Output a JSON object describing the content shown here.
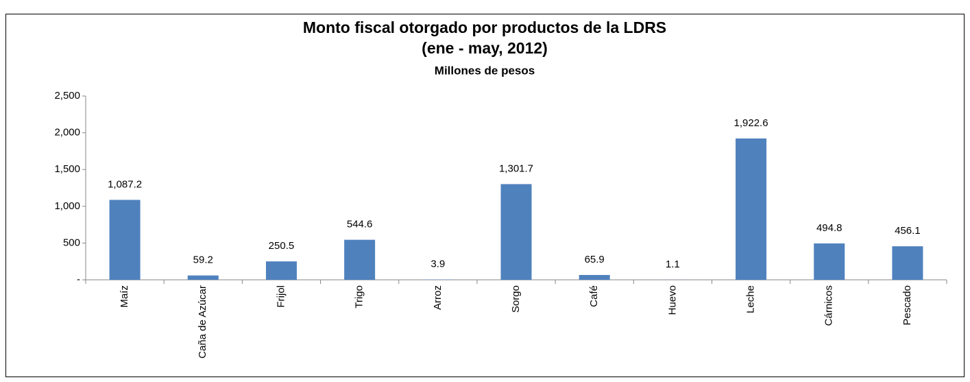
{
  "chart_data": {
    "type": "bar",
    "title": "Monto fiscal otorgado por productos de la LDRS",
    "subtitle": "(ene - may, 2012)",
    "y_axis_label": "Millones de pesos",
    "categories": [
      "Maíz",
      "Caña de Azúcar",
      "Frijol",
      "Trigo",
      "Arroz",
      "Sorgo",
      "Café",
      "Huevo",
      "Leche",
      "Cárnicos",
      "Pescado"
    ],
    "values": [
      1087.2,
      59.2,
      250.5,
      544.6,
      3.9,
      1301.7,
      65.9,
      1.1,
      1922.6,
      494.8,
      456.1
    ],
    "value_labels": [
      "1,087.2",
      "59.2",
      "250.5",
      "544.6",
      "3.9",
      "1,301.7",
      "65.9",
      "1.1",
      "1,922.6",
      "494.8",
      "456.1"
    ],
    "color": "#4f81bd",
    "ylim": [
      0,
      2500
    ],
    "yticks": [
      {
        "value": 0,
        "label": "-"
      },
      500,
      {
        "value": 1000,
        "label": "1,000"
      },
      {
        "value": 1500,
        "label": "1,500"
      },
      {
        "value": 2000,
        "label": "2,000"
      },
      {
        "value": 2500,
        "label": "2,500"
      }
    ],
    "grid": false
  }
}
